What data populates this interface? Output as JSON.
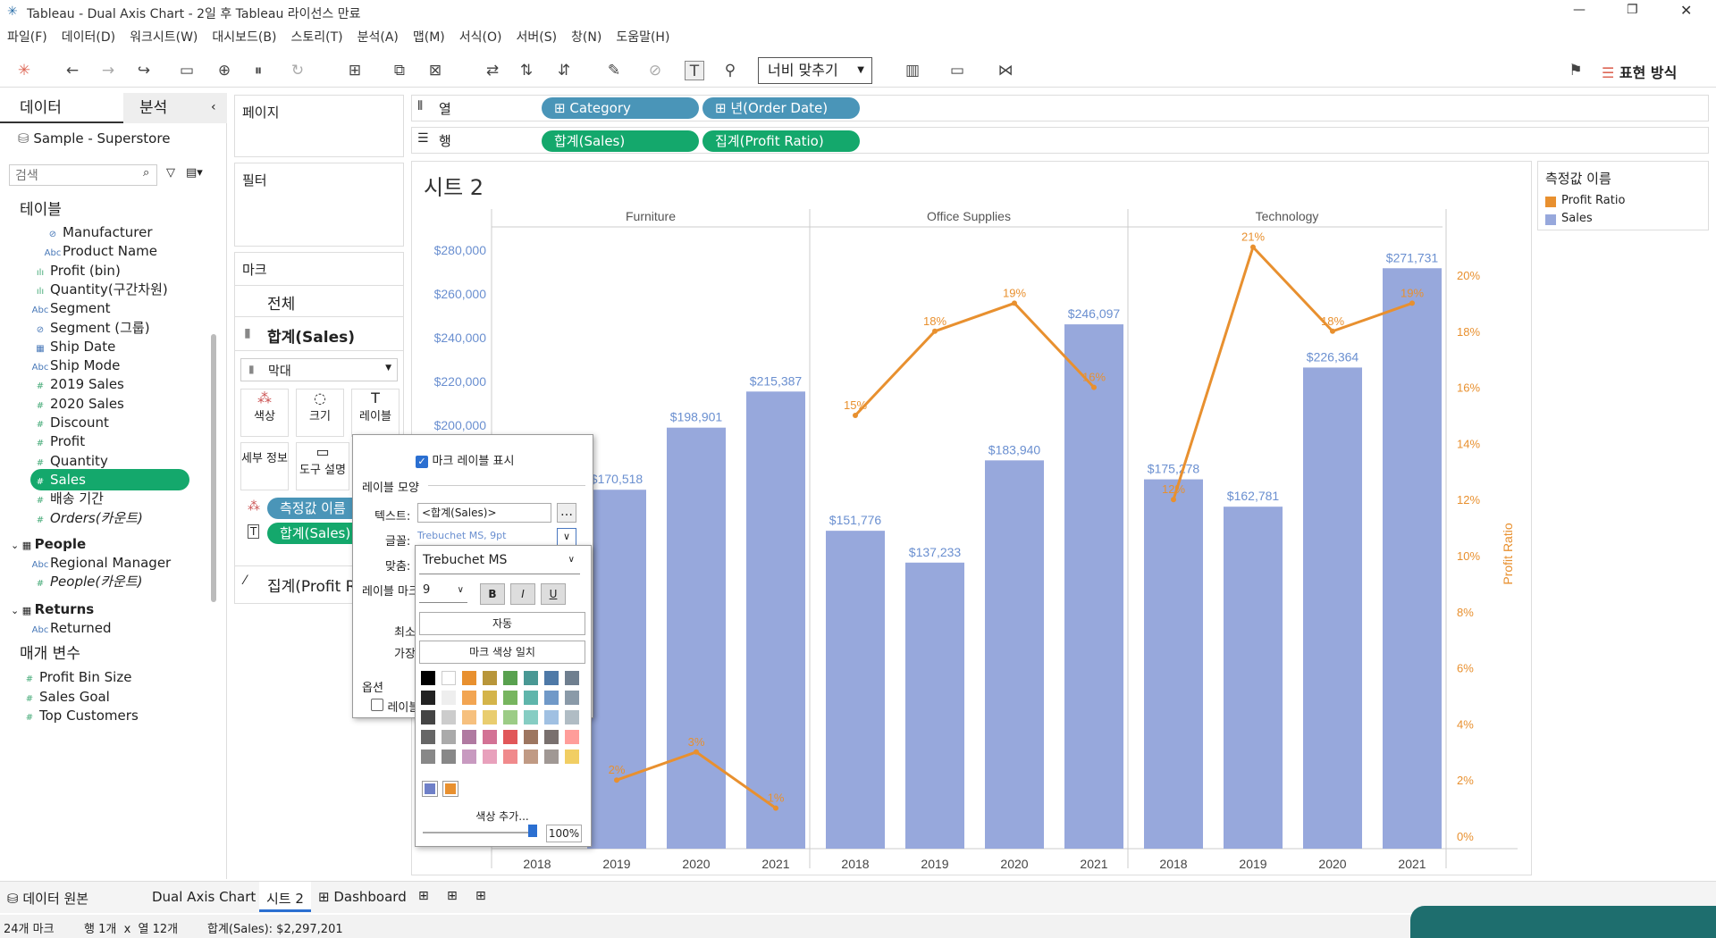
{
  "window": {
    "title": "Tableau - Dual Axis Chart - 2일 후 Tableau 라이선스 만료"
  },
  "menu": [
    "파일(F)",
    "데이터(D)",
    "워크시트(W)",
    "대시보드(B)",
    "스토리(T)",
    "분석(A)",
    "맵(M)",
    "서식(O)",
    "서버(S)",
    "창(N)",
    "도움말(H)"
  ],
  "toolbar": {
    "fit_label": "너비 맞추기",
    "show_me_label": "표현 방식"
  },
  "left": {
    "tab_data": "데이터",
    "tab_analysis": "분석",
    "source": "Sample - Superstore",
    "search_placeholder": "검색",
    "tables_header": "테이블",
    "fields": [
      {
        "icon": "link-icon",
        "label": "Manufacturer"
      },
      {
        "icon": "Abc",
        "label": "Product Name"
      },
      {
        "icon": "bin",
        "label": "Profit (bin)"
      },
      {
        "icon": "bin",
        "label": "Quantity(구간차원)"
      },
      {
        "icon": "Abc",
        "label": "Segment"
      },
      {
        "icon": "link-icon",
        "label": "Segment (그룹)"
      },
      {
        "icon": "date",
        "label": "Ship Date"
      },
      {
        "icon": "Abc",
        "label": "Ship Mode"
      },
      {
        "icon": "#",
        "label": "2019 Sales"
      },
      {
        "icon": "#",
        "label": "2020 Sales"
      },
      {
        "icon": "#",
        "label": "Discount"
      },
      {
        "icon": "#",
        "label": "Profit"
      },
      {
        "icon": "#",
        "label": "Quantity"
      },
      {
        "icon": "#",
        "label": "Sales"
      },
      {
        "icon": "#",
        "label": "배송 기간"
      },
      {
        "icon": "#",
        "label": "Orders(카운트)"
      }
    ],
    "people_header": "People",
    "people_fields": [
      {
        "icon": "Abc",
        "label": "Regional Manager"
      },
      {
        "icon": "#",
        "label": "People(카운트)"
      }
    ],
    "returns_header": "Returns",
    "returns_fields": [
      {
        "icon": "Abc",
        "label": "Returned"
      }
    ],
    "params_header": "매개 변수",
    "params": [
      "Profit Bin Size",
      "Sales Goal",
      "Top Customers"
    ]
  },
  "shelves": {
    "pages": "페이지",
    "filters": "필터",
    "marks": "마크",
    "columns_label": "열",
    "rows_label": "행",
    "columns": [
      "Category",
      "년(Order Date)"
    ],
    "rows": [
      "합계(Sales)",
      "집계(Profit Ratio)"
    ],
    "marks_all": "전체",
    "marks_sales": "합계(Sales)",
    "mark_type": "막대",
    "mark_buttons": [
      "색상",
      "크기",
      "레이블",
      "세부 정보",
      "도구 설명"
    ],
    "mark_pills": [
      "측정값 이름",
      "합계(Sales)"
    ],
    "marks_profit": "집계(Profit R"
  },
  "sheet": {
    "title": "시트 2"
  },
  "legend": {
    "title": "측정값 이름",
    "items": [
      {
        "label": "Profit Ratio",
        "color": "#e8902f"
      },
      {
        "label": "Sales",
        "color": "#97a8dc"
      }
    ]
  },
  "chart_data": {
    "type": "bar",
    "panels": [
      "Furniture",
      "Office Supplies",
      "Technology"
    ],
    "categories": [
      "2018",
      "2019",
      "2020",
      "2021"
    ],
    "series": [
      {
        "name": "Sales",
        "type": "bar",
        "color": "#97a8dc",
        "values": [
          [
            null,
            170518,
            198901,
            215387
          ],
          [
            151776,
            137233,
            183940,
            246097
          ],
          [
            175278,
            162781,
            226364,
            271731
          ]
        ],
        "labels": [
          [
            "",
            "$170,518",
            "$198,901",
            "$215,387"
          ],
          [
            "$151,776",
            "$137,233",
            "$183,940",
            "$246,097"
          ],
          [
            "$175,278",
            "$162,781",
            "$226,364",
            "$271,731"
          ]
        ]
      },
      {
        "name": "Profit Ratio",
        "type": "line",
        "color": "#e8902f",
        "values": [
          [
            null,
            2,
            3,
            1
          ],
          [
            15,
            18,
            19,
            16
          ],
          [
            12,
            21,
            18,
            19
          ]
        ],
        "labels": [
          [
            "",
            "2%",
            "3%",
            "1%"
          ],
          [
            "15%",
            "18%",
            "19%",
            "16%"
          ],
          [
            "12%",
            "21%",
            "18%",
            "19%"
          ]
        ]
      }
    ],
    "y_left_ticks": [
      "$280,000",
      "$260,000",
      "$240,000",
      "$220,000",
      "$200,000"
    ],
    "y_right_ticks": [
      "20%",
      "18%",
      "16%",
      "14%",
      "12%",
      "10%",
      "8%",
      "6%",
      "4%",
      "2%",
      "0%"
    ],
    "ylabel_right": "Profit Ratio"
  },
  "dialog": {
    "show_labels": "마크 레이블 표시",
    "appearance": "레이블 모양",
    "text_label": "텍스트:",
    "text_value": "<합계(Sales)>",
    "font_label": "글꼴:",
    "font_value": "Trebuchet MS, 9pt",
    "align_label": "맞춤:",
    "label_marks": "레이블 마크",
    "min": "최소",
    "most": "가장",
    "options": "옵션",
    "option_cb": "레이블"
  },
  "fontpop": {
    "font": "Trebuchet MS",
    "size": "9",
    "bold": "B",
    "italic": "I",
    "underline": "U",
    "auto": "자동",
    "match": "마크 색상 일치",
    "add_color": "색상 추가...",
    "opacity": "100%"
  },
  "bottom": {
    "tabs": [
      "데이터 원본",
      "Dual Axis Chart",
      "시트 2",
      "Dashboard"
    ]
  },
  "status": {
    "marks": "24개 마크",
    "rowscols": "행 1개  x  열 12개",
    "sum": "합계(Sales): $2,297,201"
  }
}
